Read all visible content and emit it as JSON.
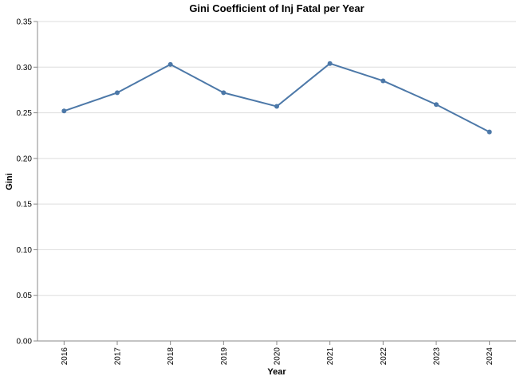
{
  "chart_data": {
    "type": "line",
    "title": "Gini Coefficient of Inj Fatal per Year",
    "xlabel": "Year",
    "ylabel": "Gini",
    "categories": [
      "2016",
      "2017",
      "2018",
      "2019",
      "2020",
      "2021",
      "2022",
      "2023",
      "2024"
    ],
    "values": [
      0.252,
      0.272,
      0.303,
      0.272,
      0.257,
      0.304,
      0.285,
      0.259,
      0.229
    ],
    "ylim": [
      0,
      0.35
    ],
    "yticks": [
      "0.00",
      "0.05",
      "0.10",
      "0.15",
      "0.20",
      "0.25",
      "0.30",
      "0.35"
    ],
    "grid": true,
    "line_color": "#4c78a8",
    "grid_color": "#dddddd",
    "axis_color": "#888888"
  }
}
